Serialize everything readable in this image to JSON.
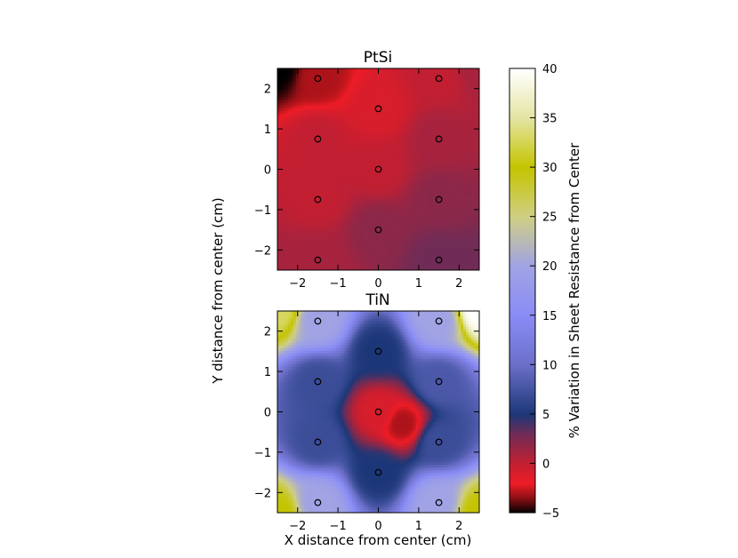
{
  "chart_data": [
    {
      "type": "heatmap",
      "title": "PtSi",
      "xlim": [
        -2.5,
        2.5
      ],
      "ylim": [
        -2.5,
        2.5
      ],
      "xticks": [
        -2,
        -1,
        0,
        1,
        2
      ],
      "yticks": [
        -2,
        -1,
        0,
        1,
        2
      ],
      "xtick_labels": [
        "−2",
        "−1",
        "0",
        "1",
        "2"
      ],
      "ytick_labels": [
        "−2",
        "−1",
        "0",
        "1",
        "2"
      ],
      "points": [
        {
          "x": -1.5,
          "y": 2.25,
          "v": -3
        },
        {
          "x": 1.5,
          "y": 2.25,
          "v": 0
        },
        {
          "x": 0,
          "y": 1.5,
          "v": -1
        },
        {
          "x": -1.5,
          "y": 0.75,
          "v": 0
        },
        {
          "x": 1.5,
          "y": 0.75,
          "v": 1
        },
        {
          "x": 0,
          "y": 0,
          "v": 0
        },
        {
          "x": -1.5,
          "y": -0.75,
          "v": 0
        },
        {
          "x": 1.5,
          "y": -0.75,
          "v": 2
        },
        {
          "x": 0,
          "y": -1.5,
          "v": 2
        },
        {
          "x": -1.5,
          "y": -2.25,
          "v": 1
        },
        {
          "x": 1.5,
          "y": -2.25,
          "v": 3
        }
      ],
      "corner_values": {
        "top_left": -5,
        "top_right": 1,
        "bottom_left": 1,
        "bottom_right": 3
      }
    },
    {
      "type": "heatmap",
      "title": "TiN",
      "xlim": [
        -2.5,
        2.5
      ],
      "ylim": [
        -2.5,
        2.5
      ],
      "xticks": [
        -2,
        -1,
        0,
        1,
        2
      ],
      "yticks": [
        -2,
        -1,
        0,
        1,
        2
      ],
      "xtick_labels": [
        "−2",
        "−1",
        "0",
        "1",
        "2"
      ],
      "ytick_labels": [
        "−2",
        "−1",
        "0",
        "1",
        "2"
      ],
      "xlabel": "X distance from center (cm)",
      "points": [
        {
          "x": -1.5,
          "y": 2.25,
          "v": 20
        },
        {
          "x": 1.5,
          "y": 2.25,
          "v": 20
        },
        {
          "x": 0,
          "y": 1.5,
          "v": 5
        },
        {
          "x": -1.5,
          "y": 0.75,
          "v": 7
        },
        {
          "x": 1.5,
          "y": 0.75,
          "v": 8
        },
        {
          "x": 0,
          "y": 0,
          "v": -1
        },
        {
          "x": -1.5,
          "y": -0.75,
          "v": 7
        },
        {
          "x": 1.5,
          "y": -0.75,
          "v": 7
        },
        {
          "x": 0,
          "y": -1.5,
          "v": 5
        },
        {
          "x": -1.5,
          "y": -2.25,
          "v": 20
        },
        {
          "x": 1.5,
          "y": -2.25,
          "v": 20
        }
      ],
      "hot_spot": {
        "x": 0.6,
        "y": -0.3,
        "v": -3
      },
      "corner_values": {
        "top_left": 33,
        "top_right": 40,
        "bottom_left": 30,
        "bottom_right": 30
      }
    }
  ],
  "shared": {
    "ylabel": "Y distance from center (cm)"
  },
  "colorbar": {
    "label": "% Variation in Sheet Resistance from Center",
    "range": [
      -5,
      40
    ],
    "ticks": [
      -5,
      0,
      5,
      10,
      15,
      20,
      25,
      30,
      35,
      40
    ],
    "tick_labels": [
      "−5",
      "0",
      "5",
      "10",
      "15",
      "20",
      "25",
      "30",
      "35",
      "40"
    ],
    "colormap": [
      {
        "v": -5,
        "color": "#000000"
      },
      {
        "v": -3.5,
        "color": "#8b0f14"
      },
      {
        "v": -2,
        "color": "#ee1c26"
      },
      {
        "v": 0,
        "color": "#c21f32"
      },
      {
        "v": 3,
        "color": "#702c56"
      },
      {
        "v": 5,
        "color": "#1c3778"
      },
      {
        "v": 10,
        "color": "#6b6fc8"
      },
      {
        "v": 15,
        "color": "#8a8cf6"
      },
      {
        "v": 20,
        "color": "#a0a3e4"
      },
      {
        "v": 25,
        "color": "#cfcf84"
      },
      {
        "v": 30,
        "color": "#c4c400"
      },
      {
        "v": 35,
        "color": "#e4e4a3"
      },
      {
        "v": 40,
        "color": "#ffffff"
      }
    ]
  }
}
